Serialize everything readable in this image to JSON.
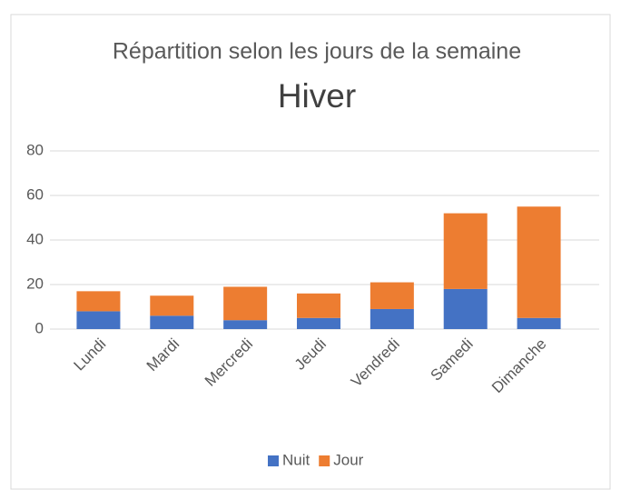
{
  "chart_data": {
    "type": "stacked_bar",
    "title": "Répartition selon les jours de la semaine",
    "subtitle": "Hiver",
    "categories": [
      "Lundi",
      "Mardi",
      "Mercredi",
      "Jeudi",
      "Vendredi",
      "Samedi",
      "Dimanche"
    ],
    "series": [
      {
        "name": "Nuit",
        "color": "#4472c4",
        "values": [
          8,
          6,
          4,
          5,
          9,
          18,
          5
        ]
      },
      {
        "name": "Jour",
        "color": "#ed7d31",
        "values": [
          9,
          9,
          15,
          11,
          12,
          34,
          50
        ]
      }
    ],
    "ylim": [
      0,
      80
    ],
    "yticks": [
      0,
      20,
      40,
      60,
      80
    ],
    "grid": true,
    "legend": "bottom"
  }
}
